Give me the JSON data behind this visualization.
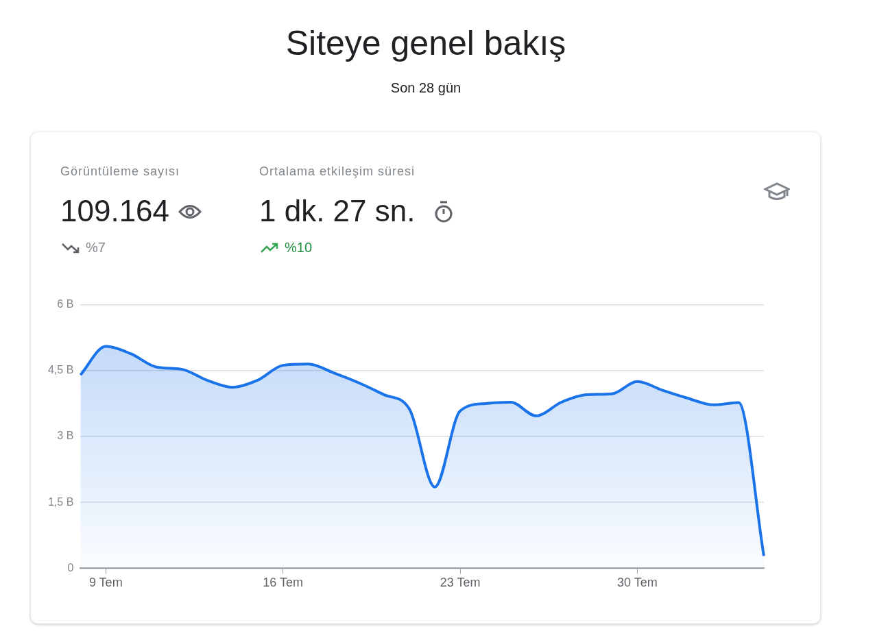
{
  "chart_data": {
    "type": "area",
    "title": "Siteye genel bakış",
    "subtitle": "Son 28 gün",
    "annotations": [
      "Görüntüleme sayısı",
      "109.164",
      "%7",
      "Ortalama etkileşim süresi",
      "1 dk. 27 sn.",
      "%10"
    ],
    "categories": [
      null,
      "9 Tem",
      null,
      null,
      null,
      null,
      null,
      null,
      "16 Tem",
      null,
      null,
      null,
      null,
      null,
      null,
      "23 Tem",
      null,
      null,
      null,
      null,
      null,
      null,
      "30 Tem",
      null,
      null,
      null,
      null,
      null
    ],
    "series": [
      {
        "color": "#1a73e8",
        "values": [
          4.4,
          5.05,
          4.88,
          4.58,
          4.53,
          4.28,
          4.12,
          4.28,
          4.62,
          4.65,
          4.45,
          4.22,
          3.95,
          3.62,
          1.85,
          3.58,
          3.75,
          3.78,
          3.47,
          3.78,
          3.95,
          3.97,
          4.25,
          4.05,
          3.87,
          3.72,
          3.77,
          0.28
        ]
      }
    ],
    "ylim": [
      0,
      6
    ],
    "yticks": [
      {
        "value": 0,
        "label": "0"
      },
      {
        "value": 1.5,
        "label": "1,5 B"
      },
      {
        "value": 3,
        "label": "3 B"
      },
      {
        "value": 4.5,
        "label": "4,5 B"
      },
      {
        "value": 6,
        "label": "6 B"
      }
    ],
    "grid": "y",
    "legend": false,
    "marker": "none",
    "line_style": "solid"
  }
}
